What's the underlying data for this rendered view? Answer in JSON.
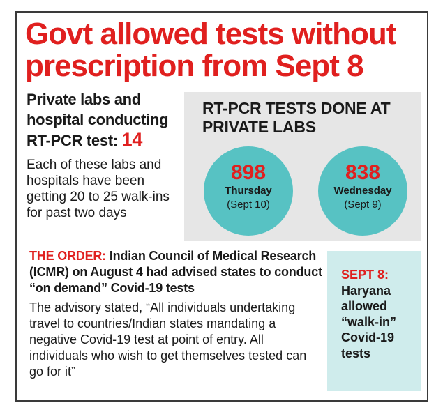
{
  "headline": "Govt allowed tests without prescription from Sept 8",
  "labs": {
    "title": "Private labs and hospital conducting RT-PCR test:",
    "count": "14",
    "description": "Each of these labs and hospitals have been getting 20 to 25 walk-ins for past two days"
  },
  "tests_panel": {
    "title": "RT-PCR TESTS DONE AT PRIVATE LABS",
    "days": [
      {
        "value": "898",
        "day": "Thursday",
        "date": "(Sept 10)"
      },
      {
        "value": "838",
        "day": "Wednesday",
        "date": "(Sept 9)"
      }
    ]
  },
  "order": {
    "label": "THE ORDER:",
    "lead": "Indian Council of Medical Research (ICMR) on August 4 had advised states to conduct “on demand” Covid-19 tests",
    "description": "The advisory stated, “All individuals undertaking travel to countries/Indian states mandating a negative Covid-19 test at point of entry. All individuals who wish to get themselves tested can go for it”"
  },
  "sept8": {
    "label": "SEPT 8:",
    "text": "Haryana allowed “walk-in” Covid-19 tests"
  },
  "colors": {
    "accent_red": "#e0201f",
    "circle_teal": "#57c2c3",
    "panel_gray": "#e6e6e6",
    "sidebar_teal": "#cfecec"
  }
}
